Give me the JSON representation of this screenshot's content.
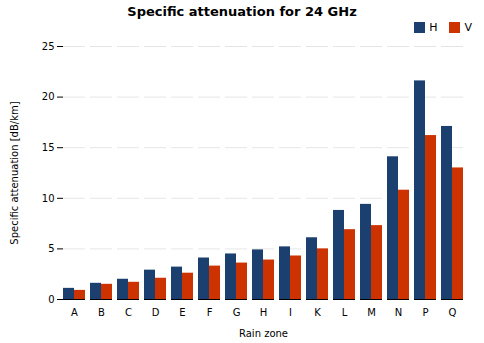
{
  "chart_data": {
    "type": "bar",
    "title": "Specific attenuation for 24 GHz",
    "xlabel": "Rain zone",
    "ylabel": "Specific attenuation [dB/km]",
    "categories": [
      "A",
      "B",
      "C",
      "D",
      "E",
      "F",
      "G",
      "H",
      "I",
      "K",
      "L",
      "M",
      "N",
      "P",
      "Q"
    ],
    "series": [
      {
        "name": "H",
        "color": "#1B3F6E",
        "values": [
          1.1,
          1.6,
          2.0,
          2.9,
          3.2,
          4.1,
          4.5,
          4.9,
          5.2,
          6.1,
          8.8,
          9.4,
          14.1,
          21.6,
          17.1
        ]
      },
      {
        "name": "V",
        "color": "#CC3300",
        "values": [
          0.9,
          1.5,
          1.7,
          2.1,
          2.6,
          3.3,
          3.6,
          3.9,
          4.3,
          5.0,
          6.9,
          7.3,
          10.8,
          16.2,
          13.0
        ]
      }
    ],
    "ylim": [
      0,
      25
    ],
    "yticks": [
      0,
      5,
      10,
      15,
      20,
      25
    ],
    "grid": true,
    "legend": "upper right"
  }
}
